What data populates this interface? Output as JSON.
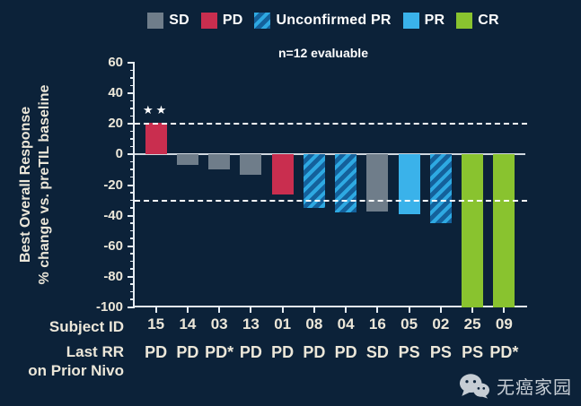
{
  "colors": {
    "background": "#0c2239",
    "sd": "#6f7d8a",
    "pd": "#c92e4f",
    "pr": "#3ab2ea",
    "cr": "#89c32f",
    "upr_light": "#2ea9e2",
    "upr_dark": "#14619b",
    "axis": "#e6edf3",
    "text_cream": "#ece7d9",
    "text_white": "#ffffff"
  },
  "legend": {
    "items": [
      {
        "label": "SD",
        "style": "sd"
      },
      {
        "label": "PD",
        "style": "pd"
      },
      {
        "label": "Unconfirmed PR",
        "style": "upr"
      },
      {
        "label": "PR",
        "style": "pr"
      },
      {
        "label": "CR",
        "style": "cr"
      }
    ]
  },
  "chart_data": {
    "type": "bar",
    "subtitle": "n=12 evaluable",
    "ylabel_line1": "Best Overall Response",
    "ylabel_line2": "% change vs. preTIL baseline",
    "ylim": [
      -100,
      60
    ],
    "ytick_step": 20,
    "ytick_minor_step": 5,
    "reference_lines_dashed": [
      20,
      -30
    ],
    "grid": "off",
    "legend_position": "top",
    "categories": [
      "15",
      "14",
      "03",
      "13",
      "01",
      "08",
      "04",
      "16",
      "05",
      "02",
      "25",
      "09"
    ],
    "values": [
      21,
      -7,
      -10,
      -13,
      -26,
      -35,
      -38,
      -37,
      -39,
      -45,
      -100,
      -100
    ],
    "bar_styles": [
      "pd",
      "sd",
      "sd",
      "sd",
      "pd",
      "upr",
      "upr",
      "sd",
      "pr",
      "upr",
      "cr",
      "cr"
    ],
    "last_rr": [
      "PD",
      "PD",
      "PD*",
      "PD",
      "PD",
      "PD",
      "PD",
      "SD",
      "PS",
      "PS",
      "PS",
      "PD*"
    ],
    "annotations": [
      {
        "index": 0,
        "text": "★★"
      }
    ],
    "row_labels": {
      "subject": "Subject ID",
      "rr_line1": "Last RR",
      "rr_line2": "on Prior Nivo"
    }
  },
  "watermark": {
    "icon": "wechat-icon",
    "text": "无癌家园"
  }
}
